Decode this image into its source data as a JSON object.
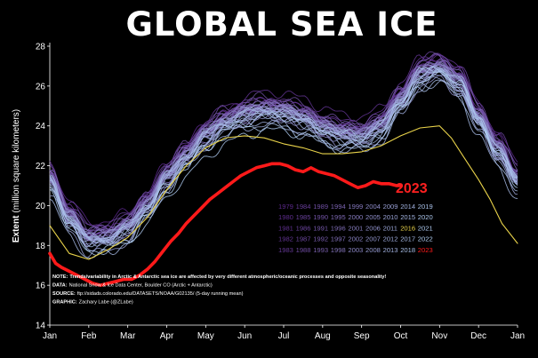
{
  "title": "GLOBAL SEA ICE",
  "ylabel_main": "Extent",
  "ylabel_sub": "(million square kilometers)",
  "annotation": "2023",
  "notes": [
    {
      "label": "NOTE:",
      "text": "Trends/variability in Arctic & Antarctic sea ice are affected by very different atmospheric/oceanic processes and opposite seasonality!",
      "bold": true
    },
    {
      "label": "DATA:",
      "text": "National Snow & Ice Data Center, Boulder CO (Arctic + Antarctic)",
      "bold": false
    },
    {
      "label": "SOURCE:",
      "text": "ftp://sidads.colorado.edu/DATASETS/NOAA/G02135/ (5-day running mean)",
      "bold": false
    },
    {
      "label": "GRAPHIC:",
      "text": "Zachary Labe (@ZLabe)",
      "bold": false
    }
  ],
  "colors": {
    "background": "#000000",
    "highlight_2023": "#ff1a1a",
    "highlight_2016": "#e8d24a",
    "early_years": "#5a2a8a",
    "late_years": "#a8c8f0"
  },
  "chart_data": {
    "type": "line",
    "xlabel": "",
    "ylabel": "Extent (million square kilometers)",
    "ylim": [
      14,
      28
    ],
    "yticks": [
      "14",
      "16",
      "18",
      "20",
      "22",
      "24",
      "26",
      "28"
    ],
    "xticks": [
      "Jan",
      "Feb",
      "Mar",
      "Apr",
      "May",
      "Jun",
      "Jul",
      "Aug",
      "Sep",
      "Oct",
      "Nov",
      "Dec",
      "Jan"
    ],
    "grid": false,
    "legend_placement": "bottom-right",
    "legend_years": [
      [
        "1979",
        "1984",
        "1989",
        "1994",
        "1999",
        "2004",
        "2009",
        "2014",
        "2019"
      ],
      [
        "1980",
        "1985",
        "1990",
        "1995",
        "2000",
        "2005",
        "2010",
        "2015",
        "2020"
      ],
      [
        "1981",
        "1986",
        "1991",
        "1996",
        "2001",
        "2006",
        "2011",
        "2016",
        "2021"
      ],
      [
        "1982",
        "1987",
        "1992",
        "1997",
        "2002",
        "2007",
        "2012",
        "2017",
        "2022"
      ],
      [
        "1983",
        "1988",
        "1993",
        "1998",
        "2003",
        "2008",
        "2013",
        "2018",
        "2023"
      ]
    ],
    "climatology_knots": {
      "x_month": [
        0,
        0.5,
        1.0,
        1.5,
        2.0,
        2.5,
        3.0,
        3.5,
        4.0,
        4.5,
        5.0,
        5.5,
        6.0,
        6.5,
        7.0,
        7.5,
        8.0,
        8.5,
        9.0,
        9.5,
        10.0,
        10.5,
        11.0,
        11.5,
        12.0
      ],
      "y": [
        21.5,
        19.6,
        18.5,
        18.6,
        19.1,
        20.2,
        21.6,
        22.7,
        23.7,
        24.4,
        24.8,
        25.0,
        24.9,
        24.6,
        24.1,
        23.8,
        23.7,
        24.2,
        25.5,
        26.8,
        27.1,
        26.4,
        24.6,
        23.0,
        21.5
      ]
    },
    "series": [
      {
        "name": "2023",
        "x_month": [
          0,
          0.15,
          0.3,
          0.5,
          0.7,
          0.9,
          1.1,
          1.3,
          1.5,
          1.7,
          1.9,
          2.1,
          2.3,
          2.5,
          2.7,
          2.9,
          3.1,
          3.3,
          3.5,
          3.7,
          3.9,
          4.1,
          4.3,
          4.5,
          4.7,
          4.9,
          5.1,
          5.3,
          5.5,
          5.7,
          5.9,
          6.1,
          6.3,
          6.5,
          6.7,
          6.9,
          7.1,
          7.3,
          7.5,
          7.7,
          7.9,
          8.1,
          8.3,
          8.5,
          8.7,
          8.9,
          9.0
        ],
        "values": [
          17.6,
          17.1,
          16.9,
          16.7,
          16.5,
          16.3,
          16.1,
          16.0,
          16.1,
          16.2,
          16.3,
          16.3,
          16.5,
          16.8,
          17.2,
          17.7,
          18.2,
          18.6,
          19.1,
          19.5,
          19.9,
          20.3,
          20.6,
          20.9,
          21.2,
          21.5,
          21.7,
          21.9,
          22.0,
          22.1,
          22.1,
          22.0,
          21.8,
          21.7,
          21.9,
          21.7,
          21.6,
          21.5,
          21.3,
          21.1,
          20.9,
          21.0,
          21.2,
          21.1,
          21.1,
          21.0,
          21.0
        ]
      },
      {
        "name": "2016",
        "x_month": [
          0,
          0.5,
          1.0,
          1.5,
          2.0,
          2.5,
          3.0,
          3.5,
          4.0,
          4.5,
          5.0,
          5.5,
          6.0,
          6.5,
          7.0,
          7.5,
          8.0,
          8.5,
          9.0,
          9.5,
          10.0,
          10.3,
          10.6,
          11.0,
          11.3,
          11.6,
          12.0
        ],
        "values": [
          19.0,
          17.6,
          17.3,
          17.8,
          18.4,
          19.4,
          20.8,
          22.0,
          22.9,
          23.4,
          23.5,
          23.4,
          23.1,
          22.9,
          22.6,
          22.6,
          22.7,
          23.0,
          23.5,
          23.9,
          24.0,
          23.4,
          22.5,
          21.3,
          20.3,
          19.1,
          18.1
        ]
      }
    ]
  }
}
